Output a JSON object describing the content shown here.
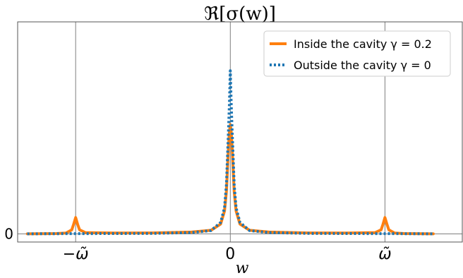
{
  "chart_data": {
    "type": "line",
    "title": "ℜ[σ(w)]",
    "xlabel": "w",
    "ylabel": "",
    "xlim": [
      -1.1,
      1.2
    ],
    "ylim": [
      -0.05,
      1.3
    ],
    "x_ticks": [
      {
        "value": -0.8,
        "label": "−ω̃"
      },
      {
        "value": 0.0,
        "label": "0"
      },
      {
        "value": 0.8,
        "label": "ω̃"
      }
    ],
    "y_ticks": [
      {
        "value": 0.0,
        "label": "0"
      }
    ],
    "grid": "vertical-at-x-ticks",
    "legend": "top-right",
    "series": [
      {
        "name": "Inside the cavity γ = 0.2",
        "style": "solid",
        "color": "#ff7f0e",
        "x": [
          -1.05,
          -0.9,
          -0.85,
          -0.82,
          -0.81,
          -0.8,
          -0.79,
          -0.78,
          -0.75,
          -0.6,
          -0.4,
          -0.2,
          -0.1,
          -0.05,
          -0.03,
          -0.02,
          -0.01,
          -0.005,
          0.0,
          0.005,
          0.01,
          0.02,
          0.03,
          0.05,
          0.1,
          0.2,
          0.4,
          0.6,
          0.75,
          0.78,
          0.79,
          0.8,
          0.81,
          0.82,
          0.85,
          0.9,
          1.05
        ],
        "values": [
          0.0,
          0.002,
          0.005,
          0.025,
          0.06,
          0.1,
          0.06,
          0.025,
          0.008,
          0.005,
          0.006,
          0.011,
          0.022,
          0.06,
          0.14,
          0.26,
          0.52,
          0.62,
          0.67,
          0.62,
          0.52,
          0.26,
          0.14,
          0.06,
          0.022,
          0.011,
          0.006,
          0.005,
          0.008,
          0.025,
          0.06,
          0.1,
          0.06,
          0.025,
          0.005,
          0.002,
          0.0
        ]
      },
      {
        "name": "Outside the cavity γ = 0",
        "style": "dotted",
        "color": "#1f77b4",
        "x": [
          -1.05,
          -0.9,
          -0.6,
          -0.4,
          -0.2,
          -0.1,
          -0.05,
          -0.03,
          -0.02,
          -0.01,
          -0.005,
          0.0,
          0.005,
          0.01,
          0.02,
          0.03,
          0.05,
          0.1,
          0.2,
          0.4,
          0.6,
          0.9,
          1.05
        ],
        "values": [
          0.0,
          0.001,
          0.002,
          0.003,
          0.008,
          0.02,
          0.07,
          0.16,
          0.3,
          0.62,
          0.78,
          1.0,
          0.78,
          0.62,
          0.3,
          0.16,
          0.07,
          0.02,
          0.008,
          0.003,
          0.002,
          0.001,
          0.0
        ]
      }
    ]
  }
}
